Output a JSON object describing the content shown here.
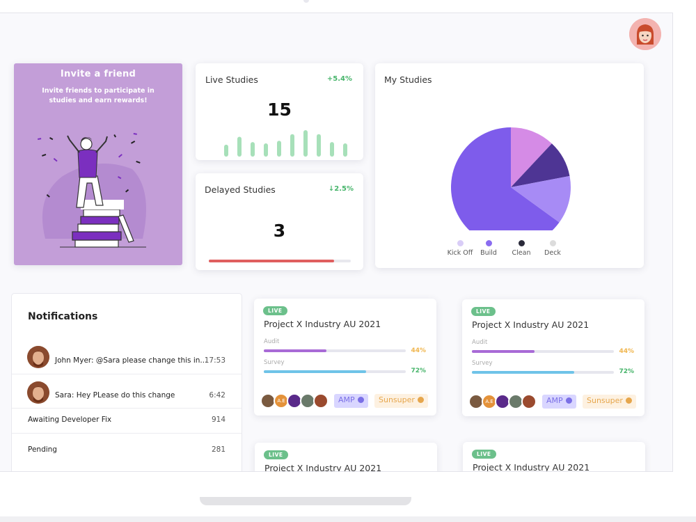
{
  "header": {
    "avatar_name": "user-avatar"
  },
  "invite": {
    "title": "Invite a friend",
    "subtitle": "Invite friends to participate in studies and earn rewards!"
  },
  "live_studies": {
    "title": "Live Studies",
    "delta": "+5.4%",
    "value": "15",
    "bars": [
      0.45,
      0.75,
      0.55,
      0.5,
      0.6,
      0.85,
      1.0,
      0.85,
      0.55,
      0.5
    ]
  },
  "delayed_studies": {
    "title": "Delayed Studies",
    "delta": "↓2.5%",
    "value": "3",
    "progress": 0.88,
    "bar_color": "#e05f5f"
  },
  "my_studies": {
    "title": "My Studies",
    "legend": [
      {
        "label": "Kick Off",
        "color": "#d9cdf7"
      },
      {
        "label": "Build",
        "color": "#8a6cf0"
      },
      {
        "label": "Clean",
        "color": "#2a2a3a"
      },
      {
        "label": "Deck",
        "color": "#dcdcdc"
      }
    ]
  },
  "chart_data": {
    "type": "pie",
    "title": "My Studies",
    "slices": [
      {
        "label": "",
        "value": 65,
        "color": "#7e5ceb"
      },
      {
        "label": "",
        "value": 12,
        "color": "#d58be6"
      },
      {
        "label": "",
        "value": 10,
        "color": "#4e3594"
      },
      {
        "label": "",
        "value": 13,
        "color": "#a78bf5"
      }
    ]
  },
  "notifications": {
    "title": "Notifications",
    "items": [
      {
        "text": "John Myer: @Sara please change this in...",
        "time": "17:53"
      },
      {
        "text": "Sara: Hey PLease do this change",
        "time": "6:42"
      },
      {
        "text": "Awaiting Developer Fix",
        "time": "914"
      },
      {
        "text": "Pending",
        "time": "281"
      }
    ]
  },
  "projects": [
    {
      "badge": "LIVE",
      "title": "Project X Industry AU 2021",
      "audit_label": "Audit",
      "audit_pct": "44%",
      "audit_value": 0.44,
      "survey_label": "Survey",
      "survey_pct": "72%",
      "survey_value": 0.72,
      "initials": "A.E",
      "tag1": "AMP",
      "tag2": "Sunsuper"
    },
    {
      "badge": "LIVE",
      "title": "Project X Industry AU 2021",
      "audit_label": "Audit",
      "audit_pct": "44%",
      "audit_value": 0.44,
      "survey_label": "Survey",
      "survey_pct": "72%",
      "survey_value": 0.72,
      "initials": "A.E",
      "tag1": "AMP",
      "tag2": "Sunsuper"
    },
    {
      "badge": "LIVE",
      "title": "Project X Industry AU 2021"
    },
    {
      "badge": "LIVE",
      "title": "Project X Industry AU 2021"
    }
  ],
  "colors": {
    "accent": "#c39ed8",
    "audit": "#a86ad6",
    "survey": "#6fc3e8",
    "audit_pct": "#f0b64f",
    "survey_pct": "#46b46a",
    "positive": "#46b46a"
  }
}
